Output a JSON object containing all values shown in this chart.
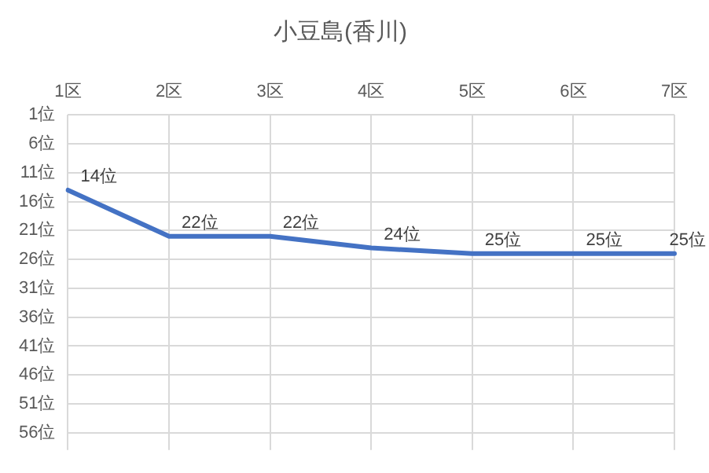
{
  "chart_data": {
    "type": "line",
    "title": "小豆島(香川)",
    "categories": [
      "1区",
      "2区",
      "3区",
      "4区",
      "5区",
      "6区",
      "7区"
    ],
    "series": [
      {
        "color": "#4472c4",
        "values": [
          14,
          22,
          22,
          24,
          25,
          25,
          25
        ],
        "value_labels": [
          "14位",
          "22位",
          "22位",
          "24位",
          "25位",
          "25位",
          "25位"
        ]
      }
    ],
    "ylim": [
      59,
      1
    ],
    "yticks": [
      {
        "value": 1,
        "label": "1位"
      },
      {
        "value": 6,
        "label": "6位"
      },
      {
        "value": 11,
        "label": "11位"
      },
      {
        "value": 16,
        "label": "16位"
      },
      {
        "value": 21,
        "label": "21位"
      },
      {
        "value": 26,
        "label": "26位"
      },
      {
        "value": 31,
        "label": "31位"
      },
      {
        "value": 36,
        "label": "36位"
      },
      {
        "value": 41,
        "label": "41位"
      },
      {
        "value": 46,
        "label": "46位"
      },
      {
        "value": 51,
        "label": "51位"
      },
      {
        "value": 56,
        "label": "56位"
      }
    ],
    "grid": true,
    "legend": false,
    "marker": "none",
    "line_style": "solid"
  }
}
